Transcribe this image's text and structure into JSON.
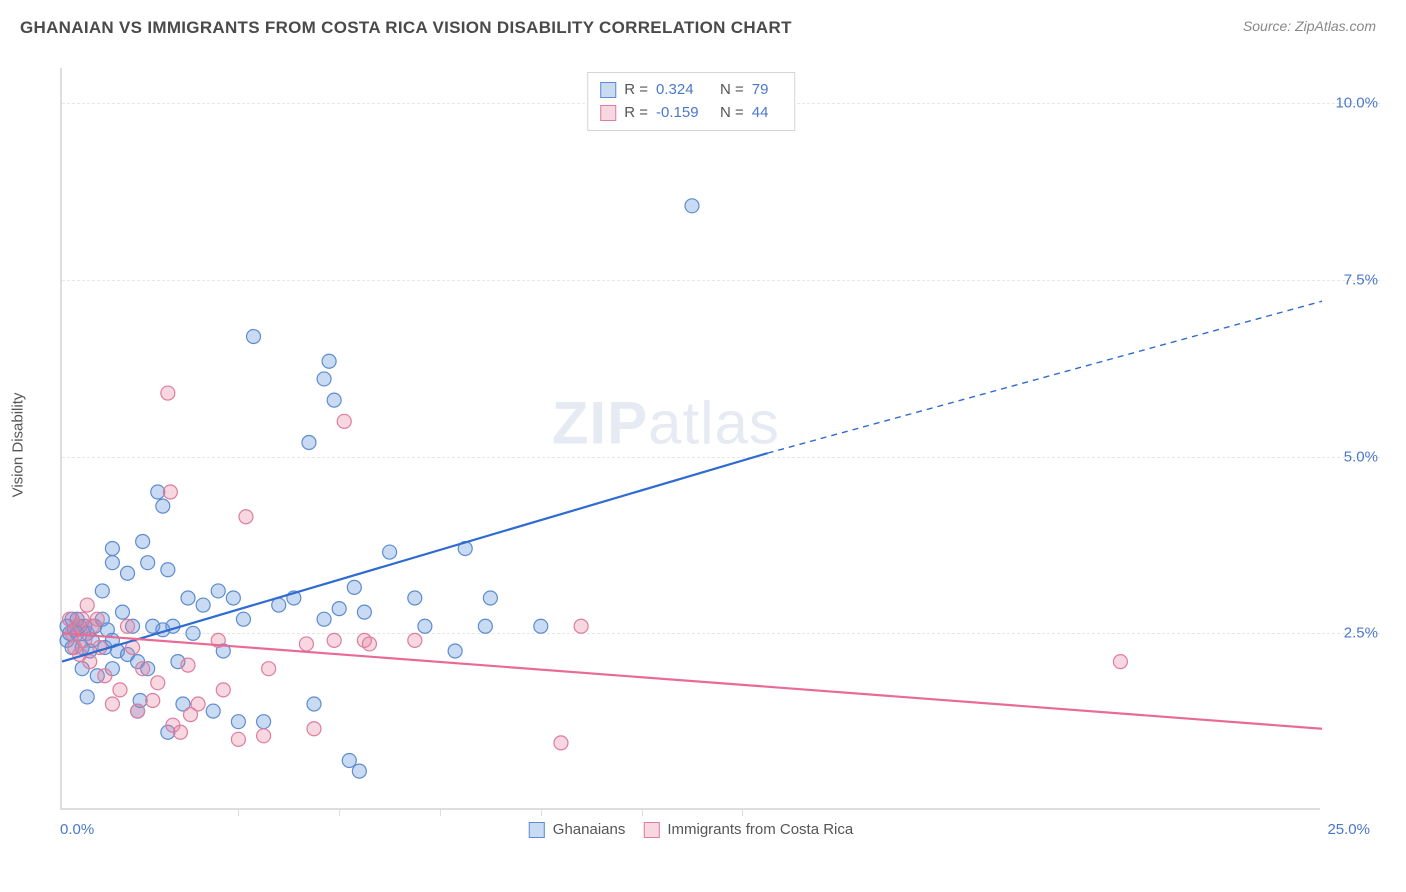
{
  "header": {
    "title": "GHANAIAN VS IMMIGRANTS FROM COSTA RICA VISION DISABILITY CORRELATION CHART",
    "source": "Source: ZipAtlas.com"
  },
  "chart": {
    "type": "scatter",
    "ylabel": "Vision Disability",
    "background_color": "#ffffff",
    "grid_color": "#e6e6e6",
    "axis_color": "#dddddd",
    "tick_label_color": "#4a78c9",
    "tick_fontsize": 15,
    "xlim": [
      0,
      25
    ],
    "ylim": [
      0,
      10.5
    ],
    "xtick_min_label": "0.0%",
    "xtick_max_label": "25.0%",
    "xtick_positions": [
      3.5,
      5.5,
      7.5,
      9.5,
      11.5,
      13.5
    ],
    "yticks": [
      {
        "v": 2.5,
        "label": "2.5%"
      },
      {
        "v": 5.0,
        "label": "5.0%"
      },
      {
        "v": 7.5,
        "label": "7.5%"
      },
      {
        "v": 10.0,
        "label": "10.0%"
      }
    ],
    "marker_radius": 7,
    "marker_stroke_width": 1.2,
    "trend_line_width": 2.2,
    "watermark_bold": "ZIP",
    "watermark_rest": "atlas",
    "series": [
      {
        "name": "Ghanaians",
        "fill": "rgba(100,150,220,0.35)",
        "stroke": "#5e8cd0",
        "trend_color": "#2f6bd0",
        "trend": {
          "x1": 0,
          "y1": 2.1,
          "x2_solid": 14,
          "y2_solid": 5.05,
          "x2_dash": 25,
          "y2_dash": 7.2
        },
        "R": "0.324",
        "N": "79",
        "points": [
          [
            0.1,
            2.4
          ],
          [
            0.1,
            2.6
          ],
          [
            0.15,
            2.5
          ],
          [
            0.2,
            2.7
          ],
          [
            0.2,
            2.3
          ],
          [
            0.25,
            2.55
          ],
          [
            0.3,
            2.5
          ],
          [
            0.3,
            2.7
          ],
          [
            0.35,
            2.6
          ],
          [
            0.4,
            2.0
          ],
          [
            0.4,
            2.3
          ],
          [
            0.45,
            2.6
          ],
          [
            0.5,
            1.6
          ],
          [
            0.5,
            2.5
          ],
          [
            0.55,
            2.25
          ],
          [
            0.6,
            2.4
          ],
          [
            0.65,
            2.6
          ],
          [
            0.7,
            1.9
          ],
          [
            0.8,
            2.7
          ],
          [
            0.8,
            3.1
          ],
          [
            0.85,
            2.3
          ],
          [
            0.9,
            2.55
          ],
          [
            1.0,
            2.0
          ],
          [
            1.0,
            2.4
          ],
          [
            1.0,
            3.5
          ],
          [
            1.0,
            3.7
          ],
          [
            1.1,
            2.25
          ],
          [
            1.2,
            2.8
          ],
          [
            1.3,
            3.35
          ],
          [
            1.3,
            2.2
          ],
          [
            1.4,
            2.6
          ],
          [
            1.5,
            1.4
          ],
          [
            1.5,
            2.1
          ],
          [
            1.55,
            1.55
          ],
          [
            1.6,
            3.8
          ],
          [
            1.7,
            2.0
          ],
          [
            1.7,
            3.5
          ],
          [
            1.8,
            2.6
          ],
          [
            1.9,
            4.5
          ],
          [
            2.0,
            2.55
          ],
          [
            2.0,
            4.3
          ],
          [
            2.1,
            1.1
          ],
          [
            2.1,
            3.4
          ],
          [
            2.2,
            2.6
          ],
          [
            2.3,
            2.1
          ],
          [
            2.4,
            1.5
          ],
          [
            2.5,
            3.0
          ],
          [
            2.6,
            2.5
          ],
          [
            2.8,
            2.9
          ],
          [
            3.0,
            1.4
          ],
          [
            3.1,
            3.1
          ],
          [
            3.2,
            2.25
          ],
          [
            3.4,
            3.0
          ],
          [
            3.5,
            1.25
          ],
          [
            3.6,
            2.7
          ],
          [
            3.8,
            6.7
          ],
          [
            4.0,
            1.25
          ],
          [
            4.3,
            2.9
          ],
          [
            4.6,
            3.0
          ],
          [
            4.9,
            5.2
          ],
          [
            5.0,
            1.5
          ],
          [
            5.2,
            2.7
          ],
          [
            5.2,
            6.1
          ],
          [
            5.3,
            6.35
          ],
          [
            5.4,
            5.8
          ],
          [
            5.5,
            2.85
          ],
          [
            5.7,
            0.7
          ],
          [
            5.8,
            3.15
          ],
          [
            5.9,
            0.55
          ],
          [
            6.0,
            2.8
          ],
          [
            6.5,
            3.65
          ],
          [
            7.0,
            3.0
          ],
          [
            7.2,
            2.6
          ],
          [
            7.8,
            2.25
          ],
          [
            8.0,
            3.7
          ],
          [
            8.4,
            2.6
          ],
          [
            8.5,
            3.0
          ],
          [
            9.5,
            2.6
          ],
          [
            12.5,
            8.55
          ]
        ]
      },
      {
        "name": "Immigrants from Costa Rica",
        "fill": "rgba(230,130,160,0.32)",
        "stroke": "#df7d9e",
        "trend_color": "#e86b94",
        "trend": {
          "x1": 0,
          "y1": 2.5,
          "x2_solid": 25,
          "y2_solid": 1.15,
          "x2_dash": 25,
          "y2_dash": 1.15
        },
        "R": "-0.159",
        "N": "44",
        "points": [
          [
            0.15,
            2.7
          ],
          [
            0.2,
            2.5
          ],
          [
            0.25,
            2.3
          ],
          [
            0.3,
            2.6
          ],
          [
            0.35,
            2.2
          ],
          [
            0.4,
            2.7
          ],
          [
            0.45,
            2.4
          ],
          [
            0.5,
            2.9
          ],
          [
            0.55,
            2.1
          ],
          [
            0.6,
            2.6
          ],
          [
            0.7,
            2.7
          ],
          [
            0.75,
            2.3
          ],
          [
            0.85,
            1.9
          ],
          [
            1.0,
            1.5
          ],
          [
            1.15,
            1.7
          ],
          [
            1.3,
            2.6
          ],
          [
            1.4,
            2.3
          ],
          [
            1.5,
            1.4
          ],
          [
            1.6,
            2.0
          ],
          [
            1.8,
            1.55
          ],
          [
            1.9,
            1.8
          ],
          [
            2.1,
            5.9
          ],
          [
            2.15,
            4.5
          ],
          [
            2.2,
            1.2
          ],
          [
            2.35,
            1.1
          ],
          [
            2.5,
            2.05
          ],
          [
            2.55,
            1.35
          ],
          [
            2.7,
            1.5
          ],
          [
            3.1,
            2.4
          ],
          [
            3.2,
            1.7
          ],
          [
            3.5,
            1.0
          ],
          [
            3.65,
            4.15
          ],
          [
            4.0,
            1.05
          ],
          [
            4.1,
            2.0
          ],
          [
            4.85,
            2.35
          ],
          [
            5.0,
            1.15
          ],
          [
            5.4,
            2.4
          ],
          [
            5.6,
            5.5
          ],
          [
            6.0,
            2.4
          ],
          [
            6.1,
            2.35
          ],
          [
            7.0,
            2.4
          ],
          [
            9.9,
            0.95
          ],
          [
            10.3,
            2.6
          ],
          [
            21.0,
            2.1
          ]
        ]
      }
    ]
  },
  "statbox": {
    "r_label": "R =",
    "n_label": "N ="
  }
}
